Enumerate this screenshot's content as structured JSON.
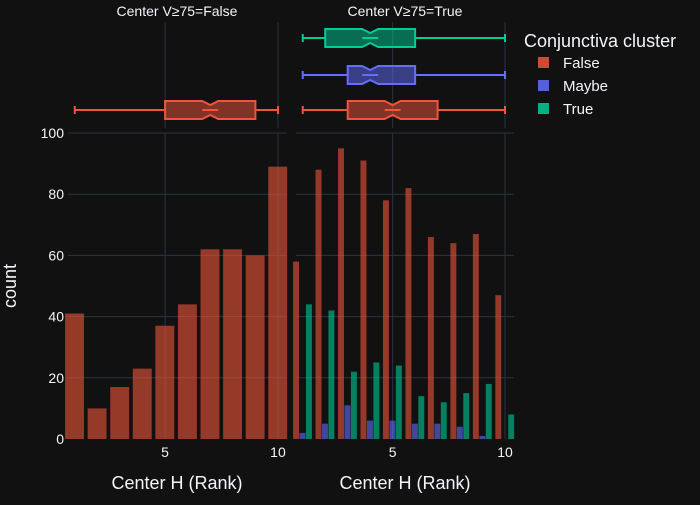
{
  "chart_data": {
    "type": "bar",
    "facet_titles": [
      "Center V≥75=False",
      "Center V≥75=True"
    ],
    "xlabel": "Center H (Rank)",
    "ylabel": "count",
    "ylim": [
      0,
      100
    ],
    "y_ticks": [
      0,
      20,
      40,
      60,
      80,
      100
    ],
    "x_ticks": [
      5,
      10
    ],
    "xlim": [
      0.7,
      10.4
    ],
    "legend": {
      "title": "Conjunctiva cluster",
      "placement": "right",
      "items": [
        {
          "label": "False",
          "color": "#ef553b"
        },
        {
          "label": "Maybe",
          "color": "#636efa"
        },
        {
          "label": "True",
          "color": "#00cc96"
        }
      ]
    },
    "x": [
      1,
      2,
      3,
      4,
      5,
      6,
      7,
      8,
      9,
      10
    ],
    "panels": [
      {
        "title": "Center V≥75=False",
        "series": [
          {
            "name": "False",
            "color": "#ef553b",
            "values": [
              41,
              10,
              17,
              23,
              37,
              44,
              62,
              62,
              60,
              89
            ]
          }
        ],
        "boxes": [
          {
            "name": "False",
            "color": "#ef553b",
            "min": 1,
            "q1": 5,
            "median": 7,
            "q3": 9,
            "max": 10
          }
        ]
      },
      {
        "title": "Center V≥75=True",
        "series": [
          {
            "name": "False",
            "color": "#ef553b",
            "values": [
              58,
              88,
              95,
              91,
              78,
              82,
              66,
              64,
              67,
              47
            ]
          },
          {
            "name": "Maybe",
            "color": "#636efa",
            "values": [
              2,
              5,
              11,
              6,
              6,
              5,
              5,
              4,
              1,
              0
            ]
          },
          {
            "name": "True",
            "color": "#00cc96",
            "values": [
              44,
              42,
              22,
              25,
              24,
              14,
              12,
              15,
              18,
              8
            ]
          }
        ],
        "boxes": [
          {
            "name": "True",
            "color": "#00cc96",
            "min": 1,
            "q1": 2,
            "median": 4,
            "q3": 6,
            "max": 10
          },
          {
            "name": "Maybe",
            "color": "#636efa",
            "min": 1,
            "q1": 3,
            "median": 4,
            "q3": 6,
            "max": 10
          },
          {
            "name": "False",
            "color": "#ef553b",
            "min": 1,
            "q1": 3,
            "median": 5,
            "q3": 7,
            "max": 10
          }
        ]
      }
    ]
  }
}
